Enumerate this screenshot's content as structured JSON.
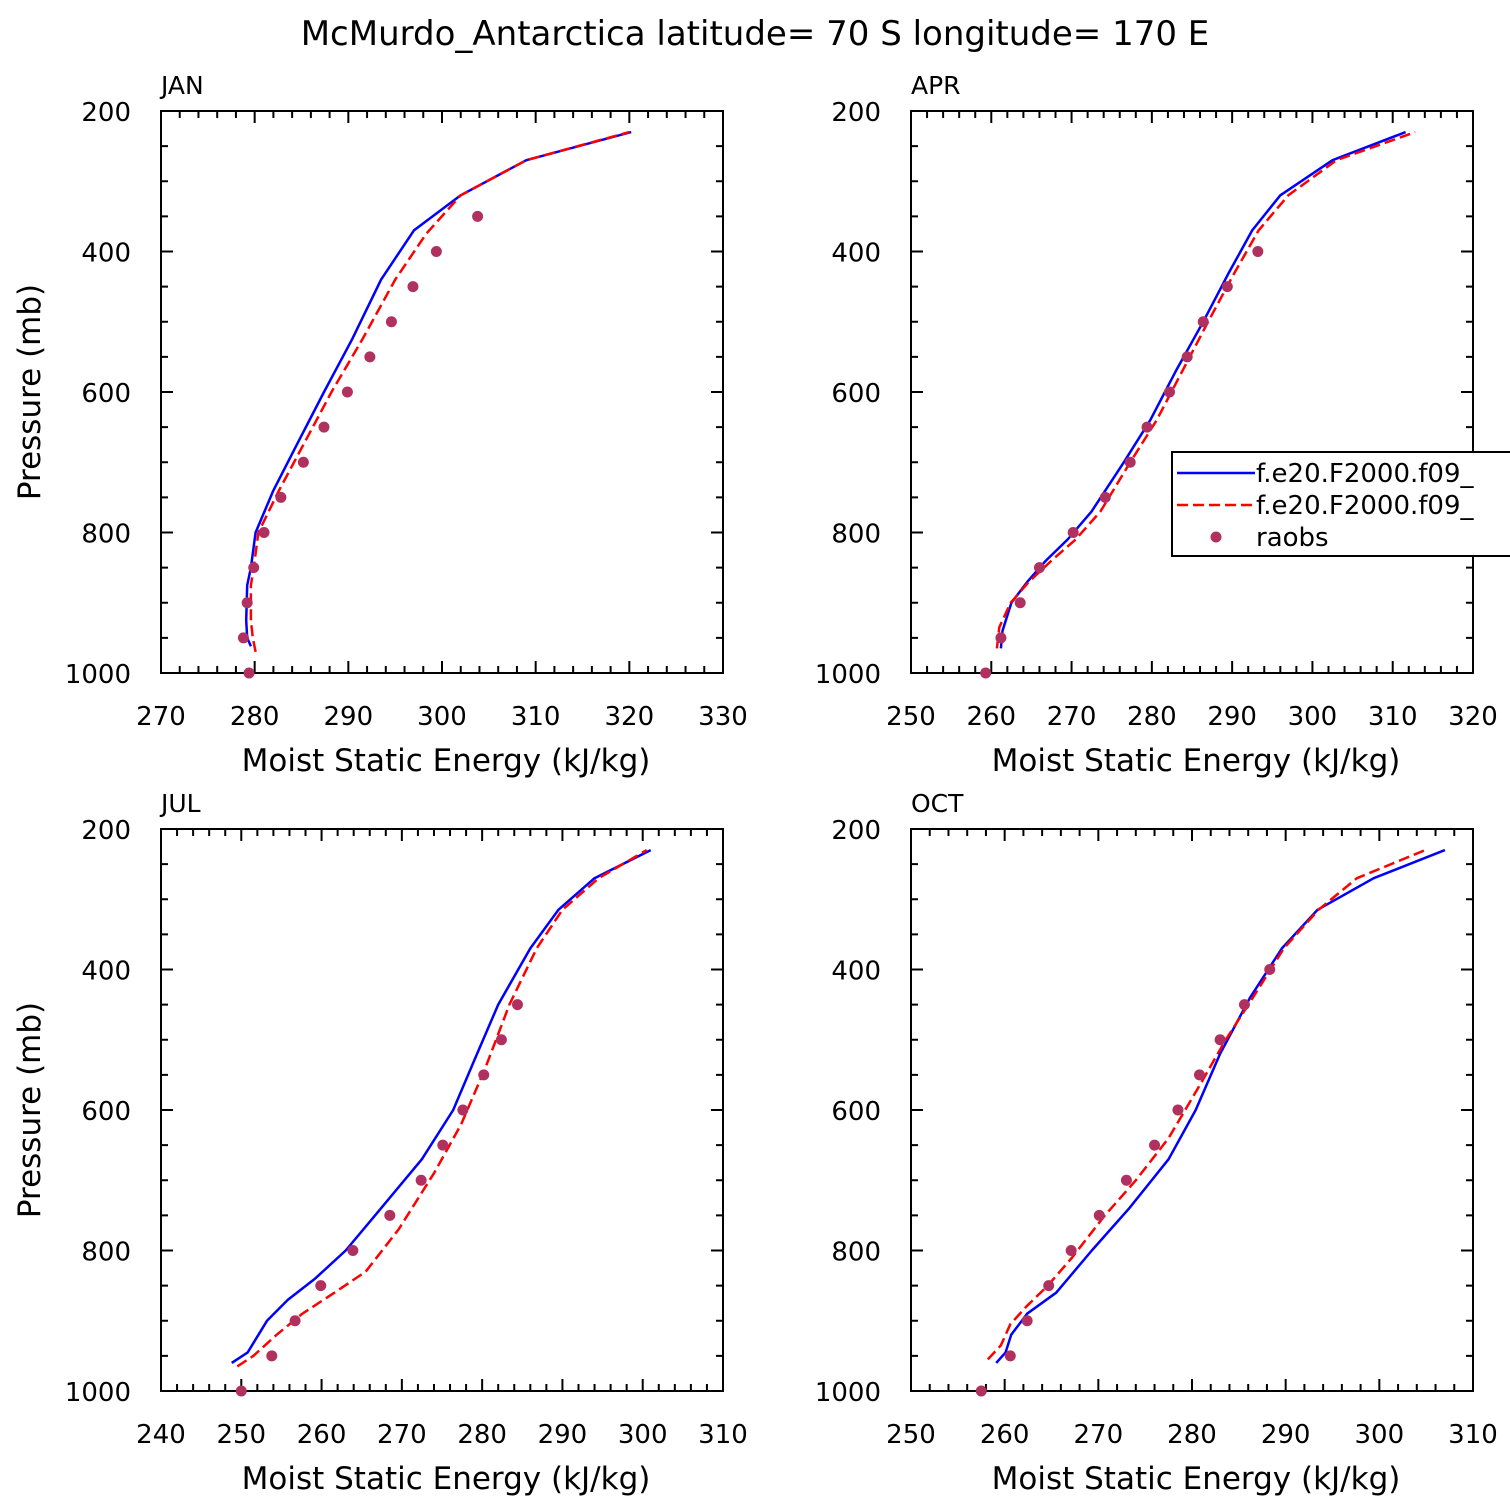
{
  "title": "McMurdo_Antarctica  latitude= 70 S longitude= 170 E",
  "chart_data": [
    {
      "type": "line",
      "panel": "JAN",
      "xlabel": "Moist Static Energy (kJ/kg)",
      "ylabel": "Pressure (mb)",
      "xlim": [
        270,
        330
      ],
      "ylim": [
        1000,
        200
      ],
      "xticks": [
        270,
        280,
        290,
        300,
        310,
        320,
        330
      ],
      "yticks": [
        200,
        400,
        600,
        800,
        1000
      ],
      "series": [
        {
          "name": "f.e20.F2000.f09_",
          "style": "solid",
          "color": "#0000ff",
          "x": [
            279.6,
            279.2,
            279.1,
            279.2,
            279.6,
            280.1,
            282.0,
            284.5,
            287.4,
            290.4,
            293.5,
            297.0,
            302.0,
            309.0,
            320.2
          ],
          "y": [
            962,
            950,
            925,
            875,
            850,
            800,
            740,
            675,
            600,
            525,
            440,
            370,
            320,
            270,
            230
          ]
        },
        {
          "name": "f.e20.F2000.f09_",
          "style": "dashed",
          "color": "#ff0000",
          "x": [
            280.1,
            279.8,
            279.6,
            279.6,
            279.9,
            280.4,
            282.6,
            285.2,
            288.2,
            291.5,
            295.0,
            298.3,
            302.0,
            309.0,
            320.0
          ],
          "y": [
            970,
            950,
            925,
            875,
            850,
            800,
            740,
            675,
            600,
            525,
            440,
            375,
            320,
            270,
            230
          ]
        },
        {
          "name": "raobs",
          "style": "marker",
          "color": "#b03060",
          "x": [
            279.4,
            278.8,
            279.2,
            279.9,
            281.0,
            282.8,
            285.2,
            287.4,
            289.9,
            292.3,
            294.6,
            296.9,
            299.4,
            303.8
          ],
          "y": [
            1000,
            950,
            900,
            850,
            800,
            750,
            700,
            650,
            600,
            550,
            500,
            450,
            400,
            350
          ]
        }
      ]
    },
    {
      "type": "line",
      "panel": "APR",
      "xlabel": "Moist Static Energy (kJ/kg)",
      "ylabel": "",
      "xlim": [
        250,
        320
      ],
      "ylim": [
        1000,
        200
      ],
      "xticks": [
        250,
        260,
        270,
        280,
        290,
        300,
        310,
        320
      ],
      "yticks": [
        200,
        400,
        600,
        800,
        1000
      ],
      "series": [
        {
          "name": "f.e20.F2000.f09_",
          "style": "solid",
          "color": "#0000ff",
          "x": [
            261.2,
            261.4,
            262.5,
            264.5,
            266.8,
            269.5,
            272.5,
            276.5,
            279.8,
            283.0,
            286.4,
            289.6,
            292.5,
            296.0,
            302.5,
            311.6
          ],
          "y": [
            965,
            940,
            900,
            870,
            840,
            810,
            770,
            700,
            640,
            570,
            500,
            430,
            370,
            320,
            270,
            230
          ]
        },
        {
          "name": "f.e20.F2000.f09_",
          "style": "dashed",
          "color": "#ff0000",
          "x": [
            260.7,
            261.0,
            262.4,
            264.7,
            267.5,
            270.5,
            273.6,
            277.3,
            280.6,
            283.8,
            287.0,
            290.3,
            293.3,
            297.0,
            303.0,
            312.8
          ],
          "y": [
            965,
            935,
            900,
            870,
            840,
            810,
            770,
            700,
            640,
            570,
            500,
            430,
            370,
            320,
            270,
            230
          ]
        },
        {
          "name": "raobs",
          "style": "marker",
          "color": "#b03060",
          "x": [
            259.3,
            261.2,
            263.6,
            266.0,
            270.2,
            274.2,
            277.3,
            279.4,
            282.2,
            284.4,
            286.4,
            289.4,
            293.2
          ],
          "y": [
            1000,
            950,
            900,
            850,
            800,
            750,
            700,
            650,
            600,
            550,
            500,
            450,
            400
          ]
        }
      ]
    },
    {
      "type": "line",
      "panel": "JUL",
      "xlabel": "Moist Static Energy (kJ/kg)",
      "ylabel": "Pressure (mb)",
      "xlim": [
        240,
        310
      ],
      "ylim": [
        1000,
        200
      ],
      "xticks": [
        240,
        250,
        260,
        270,
        280,
        290,
        300,
        310
      ],
      "yticks": [
        200,
        400,
        600,
        800,
        1000
      ],
      "series": [
        {
          "name": "f.e20.F2000.f09_",
          "style": "solid",
          "color": "#0000ff",
          "x": [
            248.8,
            250.8,
            253.2,
            255.8,
            259.2,
            263.0,
            267.4,
            272.5,
            276.4,
            279.0,
            282.0,
            286.0,
            289.5,
            294.0,
            301.0
          ],
          "y": [
            960,
            945,
            900,
            870,
            840,
            800,
            740,
            670,
            600,
            530,
            450,
            370,
            315,
            270,
            230
          ]
        },
        {
          "name": "f.e20.F2000.f09_",
          "style": "dashed",
          "color": "#ff0000",
          "x": [
            249.5,
            251.5,
            254.4,
            257.6,
            261.6,
            265.5,
            269.6,
            274.0,
            277.4,
            280.4,
            283.4,
            286.8,
            290.0,
            294.5,
            300.5
          ],
          "y": [
            965,
            950,
            920,
            890,
            860,
            830,
            770,
            690,
            620,
            540,
            450,
            370,
            315,
            270,
            230
          ]
        },
        {
          "name": "raobs",
          "style": "marker",
          "color": "#b03060",
          "x": [
            250.0,
            253.8,
            256.7,
            259.9,
            263.9,
            268.5,
            272.4,
            275.1,
            277.6,
            280.2,
            282.4,
            284.4
          ],
          "y": [
            1000,
            950,
            900,
            850,
            800,
            750,
            700,
            650,
            600,
            550,
            500,
            450
          ]
        }
      ]
    },
    {
      "type": "line",
      "panel": "OCT",
      "xlabel": "Moist Static Energy (kJ/kg)",
      "ylabel": "",
      "xlim": [
        250,
        310
      ],
      "ylim": [
        1000,
        200
      ],
      "xticks": [
        250,
        260,
        270,
        280,
        290,
        300,
        310
      ],
      "yticks": [
        200,
        400,
        600,
        800,
        1000
      ],
      "series": [
        {
          "name": "f.e20.F2000.f09_",
          "style": "solid",
          "color": "#0000ff",
          "x": [
            259.1,
            260.1,
            260.7,
            262.4,
            265.5,
            269.3,
            273.3,
            277.5,
            280.4,
            283.0,
            286.2,
            289.6,
            293.4,
            299.4,
            307.0
          ],
          "y": [
            960,
            945,
            920,
            890,
            860,
            800,
            740,
            670,
            600,
            520,
            440,
            370,
            315,
            270,
            230
          ]
        },
        {
          "name": "f.e20.F2000.f09_",
          "style": "dashed",
          "color": "#ff0000",
          "x": [
            258.2,
            259.6,
            260.6,
            262.3,
            264.6,
            267.2,
            270.7,
            274.0,
            277.5,
            280.6,
            283.6,
            286.5,
            289.8,
            293.5,
            297.6,
            304.9
          ],
          "y": [
            955,
            935,
            905,
            880,
            850,
            810,
            750,
            700,
            640,
            570,
            500,
            440,
            370,
            315,
            270,
            230
          ]
        },
        {
          "name": "raobs",
          "style": "marker",
          "color": "#b03060",
          "x": [
            257.5,
            260.6,
            262.4,
            264.7,
            267.1,
            270.1,
            273.0,
            276.0,
            278.5,
            280.8,
            283.0,
            285.6,
            288.3
          ],
          "y": [
            1000,
            950,
            900,
            850,
            800,
            750,
            700,
            650,
            600,
            550,
            500,
            450,
            400
          ]
        }
      ]
    }
  ],
  "legend": {
    "placement": "right of APR panel",
    "entries": [
      {
        "label": "f.e20.F2000.f09_",
        "style": "solid",
        "color": "#0000ff"
      },
      {
        "label": "f.e20.F2000.f09_",
        "style": "dashed",
        "color": "#ff0000"
      },
      {
        "label": "raobs",
        "style": "marker",
        "color": "#b03060"
      }
    ]
  }
}
